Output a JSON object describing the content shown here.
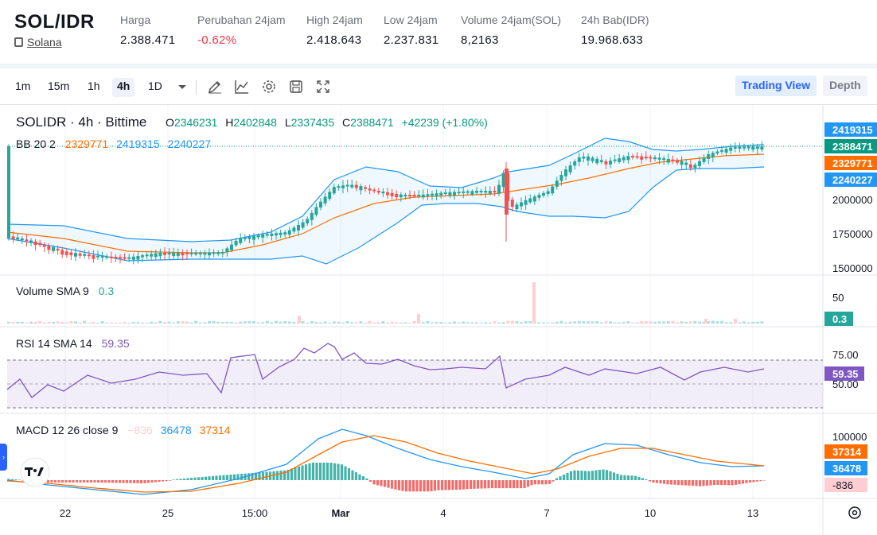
{
  "ticker": {
    "pair": "SOL/IDR",
    "coin_name": "Solana",
    "stats": [
      {
        "label": "Harga",
        "value": "2.388.471",
        "negative": false
      },
      {
        "label": "Perubahan 24jam",
        "value": "-0.62%",
        "negative": true
      },
      {
        "label": "High 24jam",
        "value": "2.418.643",
        "negative": false
      },
      {
        "label": "Low 24jam",
        "value": "2.237.831",
        "negative": false
      },
      {
        "label": "Volume 24jam(SOL)",
        "value": "8,2163",
        "negative": false
      },
      {
        "label": "24h Bab(IDR)",
        "value": "19.968.633",
        "negative": false
      }
    ]
  },
  "toolbar": {
    "timeframes": [
      "1m",
      "15m",
      "1h",
      "4h",
      "1D"
    ],
    "active_timeframe": "4h",
    "tools": [
      "pencil-icon",
      "line-chart-icon",
      "gear-icon",
      "save-icon",
      "fullscreen-icon"
    ],
    "views": [
      "Trading View",
      "Depth"
    ],
    "active_view": "Trading View"
  },
  "legend": {
    "title": "SOLIDR · 4h · Bittime",
    "o_label": "O",
    "o": "2346231",
    "h_label": "H",
    "h": "2402848",
    "l_label": "L",
    "l": "2337435",
    "c_label": "C",
    "c": "2388471",
    "change": "+42239 (+1.80%)",
    "bb_label": "BB 20 2",
    "bb_basis": "2329771",
    "bb_upper": "2419315",
    "bb_lower": "2240227"
  },
  "price_axis": {
    "ticks": [
      "2000000",
      "1750000",
      "1500000"
    ]
  },
  "price_tags": [
    {
      "value": "2419315",
      "color": "#2196f3"
    },
    {
      "value": "2388471",
      "color": "#089981"
    },
    {
      "value": "2329771",
      "color": "#ff6d00"
    },
    {
      "value": "2240227",
      "color": "#2196f3"
    }
  ],
  "volume": {
    "label": "Volume SMA 9",
    "value": "0.3",
    "tick": "50",
    "tag": "0.3",
    "color": "#26a69a"
  },
  "rsi": {
    "label": "RSI 14 SMA 14",
    "value": "59.35",
    "ticks": [
      "75.00",
      "50.00"
    ],
    "tag": "59.35",
    "color": "#7e57c2"
  },
  "macd": {
    "label": "MACD 12 26 close 9",
    "hist": "−836",
    "macd": "36478",
    "signal": "37314",
    "tick": "100000",
    "tags": [
      {
        "value": "37314",
        "color": "#ff6d00"
      },
      {
        "value": "36478",
        "color": "#2196f3"
      },
      {
        "value": "-836",
        "color": "#ffcdd2"
      }
    ]
  },
  "time_axis": {
    "labels": [
      "22",
      "25",
      "15:00",
      "Mar",
      "4",
      "7",
      "10",
      "13"
    ]
  },
  "colors": {
    "up": "#26a69a",
    "down": "#ef5350",
    "bb": "#2196f3",
    "basis": "#ff6d00",
    "rsi": "#7e57c2"
  }
}
